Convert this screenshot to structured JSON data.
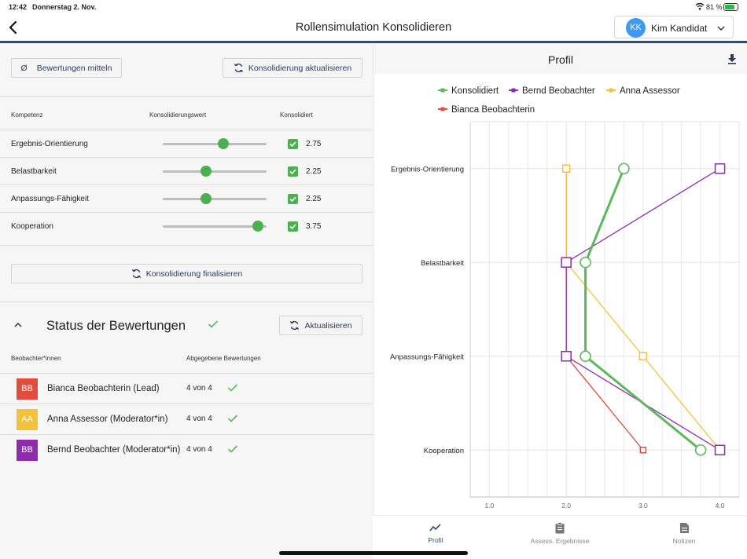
{
  "statusbar": {
    "time": "12:42",
    "date": "Donnerstag 2. Nov.",
    "battery": "81 %"
  },
  "header": {
    "title": "Rollensimulation Konsolidieren",
    "user": {
      "initials": "KK",
      "name": "Kim Kandidat",
      "avatar_color": "#3d99f1"
    }
  },
  "actions": {
    "average_label": "Bewertungen mitteln",
    "average_symbol": "Ø",
    "refresh_consolidation_label": "Konsolidierung aktualisieren",
    "finalize_label": "Konsolidierung finalisieren"
  },
  "competency_table": {
    "headers": {
      "competency": "Kompetenz",
      "value": "Konsolidierungswert",
      "consolidated": "Konsolidiert"
    },
    "range": [
      1,
      4
    ],
    "rows": [
      {
        "name": "Ergebnis-Orientierung",
        "value": 2.75,
        "value_text": "2.75",
        "consolidated": true
      },
      {
        "name": "Belastbarkeit",
        "value": 2.25,
        "value_text": "2.25",
        "consolidated": true
      },
      {
        "name": "Anpassungs-Fähigkeit",
        "value": 2.25,
        "value_text": "2.25",
        "consolidated": true
      },
      {
        "name": "Kooperation",
        "value": 3.75,
        "value_text": "3.75",
        "consolidated": true
      }
    ]
  },
  "status": {
    "title": "Status der Bewertungen",
    "refresh_label": "Aktualisieren",
    "headers": {
      "observer": "Beobachter*innen",
      "submitted": "Abgegebene Bewertungen"
    },
    "observers": [
      {
        "initials": "BB",
        "name": "Bianca Beobachterin (Lead)",
        "count": "4 von 4",
        "color": "#e14c3c"
      },
      {
        "initials": "AA",
        "name": "Anna Assessor (Moderator*in)",
        "count": "4 von 4",
        "color": "#f4c13a"
      },
      {
        "initials": "BB",
        "name": "Bernd Beobachter (Moderator*in)",
        "count": "4 von 4",
        "color": "#8e2cad"
      }
    ]
  },
  "profile": {
    "title": "Profil"
  },
  "chart_data": {
    "type": "line",
    "orientation": "horizontal",
    "categories": [
      "Ergebnis-Orientierung",
      "Belastbarkeit",
      "Anpassungs-Fähigkeit",
      "Kooperation"
    ],
    "xlim": [
      0.75,
      4.25
    ],
    "xticks": [
      "1.0",
      "2.0",
      "3.0",
      "4.0"
    ],
    "xtick_values": [
      1,
      2,
      3,
      4
    ],
    "grid": true,
    "legend_position": "top",
    "series": [
      {
        "name": "Konsolidiert",
        "color": "#5cb85c",
        "marker": "circle",
        "values": [
          2.75,
          2.25,
          2.25,
          3.75
        ]
      },
      {
        "name": "Bernd Beobachter",
        "color": "#8e2cad",
        "marker": "square",
        "values": [
          4.0,
          2.0,
          2.0,
          4.0
        ]
      },
      {
        "name": "Anna Assessor",
        "color": "#f4c13a",
        "marker": "square",
        "values": [
          2.0,
          2.0,
          3.0,
          4.0
        ]
      },
      {
        "name": "Bianca Beobachterin",
        "color": "#e14c3c",
        "marker": "square",
        "values": [
          2.0,
          2.0,
          2.0,
          3.0
        ]
      }
    ]
  },
  "tabs": [
    {
      "label": "Profil",
      "active": true
    },
    {
      "label": "Assess. Ergebnisse",
      "active": false
    },
    {
      "label": "Notizen",
      "active": false
    }
  ]
}
